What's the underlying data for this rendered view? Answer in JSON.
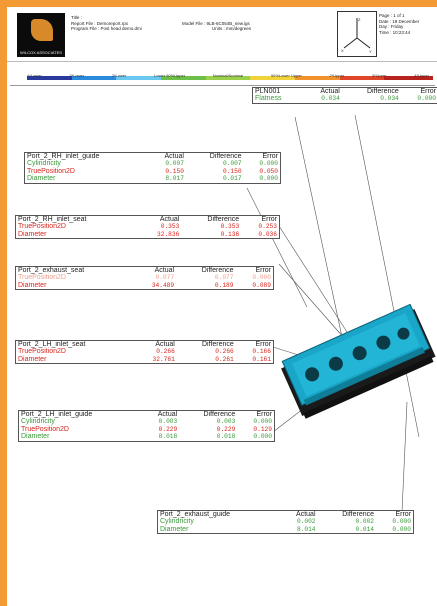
{
  "header": {
    "title_line": "Title :",
    "report_line": "Report File : Demoreport.rpx",
    "model_line": "Model File : 9LB-6C054B_new.igs",
    "program_line": "Program File : Post head demo.dmi",
    "units_line": "Units : mm/degrees",
    "page_line": "Page : 1 of 1",
    "date_line": "Date : 19 December",
    "day_line": "Day : Friday",
    "time_line": "Time : 10:23:44",
    "logo_text": "WILCOX ASSOCIATES"
  },
  "scale": {
    "labels": [
      "4*Lower",
      "3*Lower",
      "2*Lower",
      "Lower 90%Upper",
      "Nominal/Nominal",
      "90%Lower Upper",
      "2*Upper",
      "3*Upper",
      "4*Upper"
    ],
    "colors": [
      "#2a3a9c",
      "#2a8adc",
      "#6ac8f0",
      "#6cbf48",
      "#9bd04a",
      "#f2d23a",
      "#f2922a",
      "#e0452a",
      "#b8221c"
    ]
  },
  "tables": [
    {
      "title": "PLN001",
      "headers": [
        "Actual",
        "Difference",
        "Error"
      ],
      "rows": [
        {
          "label": "Flatness",
          "actual": "0.034",
          "diff": "0.034",
          "error": "0.000"
        }
      ]
    },
    {
      "title": "Port_2_RH_inlet_guide",
      "headers": [
        "Actual",
        "Difference",
        "Error"
      ],
      "rows": [
        {
          "label": "Cylindricity",
          "actual": "0.007",
          "diff": "0.007",
          "error": "0.000"
        },
        {
          "label": "TruePosition2D",
          "actual": "0.150",
          "diff": "0.150",
          "error": "0.050"
        },
        {
          "label": "Diameter",
          "actual": "8.017",
          "diff": "0.017",
          "error": "0.000"
        }
      ]
    },
    {
      "title": "Port_2_RH_inlet_seat",
      "headers": [
        "Actual",
        "Difference",
        "Error"
      ],
      "rows": [
        {
          "label": "TruePosition2D",
          "actual": "0.353",
          "diff": "0.353",
          "error": "0.253"
        },
        {
          "label": "Diameter",
          "actual": "32.836",
          "diff": "0.136",
          "error": "0.036"
        }
      ]
    },
    {
      "title": "Port_2_exhaust_seat",
      "headers": [
        "Actual",
        "Difference",
        "Error"
      ],
      "rows": [
        {
          "label": "TruePosition2D",
          "actual": "0.077",
          "diff": "0.077",
          "error": "0.000"
        },
        {
          "label": "Diameter",
          "actual": "34.489",
          "diff": "0.189",
          "error": "0.089"
        }
      ]
    },
    {
      "title": "Port_2_LH_inlet_seat",
      "headers": [
        "Actual",
        "Difference",
        "Error"
      ],
      "rows": [
        {
          "label": "TruePosition2D",
          "actual": "0.266",
          "diff": "0.266",
          "error": "0.166"
        },
        {
          "label": "Diameter",
          "actual": "32.761",
          "diff": "0.261",
          "error": "0.161"
        }
      ]
    },
    {
      "title": "Port_2_LH_inlet_guide",
      "headers": [
        "Actual",
        "Difference",
        "Error"
      ],
      "rows": [
        {
          "label": "Cylindricity",
          "actual": "0.003",
          "diff": "0.003",
          "error": "0.000"
        },
        {
          "label": "TruePosition2D",
          "actual": "0.229",
          "diff": "0.229",
          "error": "0.129"
        },
        {
          "label": "Diameter",
          "actual": "8.018",
          "diff": "0.018",
          "error": "0.000"
        }
      ]
    },
    {
      "title": "Port_2_exhaust_guide",
      "headers": [
        "Actual",
        "Difference",
        "Error"
      ],
      "rows": [
        {
          "label": "Cylindricity",
          "actual": "0.002",
          "diff": "0.002",
          "error": "0.000"
        },
        {
          "label": "Diameter",
          "actual": "8.014",
          "diff": "0.014",
          "error": "0.000"
        }
      ]
    }
  ],
  "colors": {
    "frame": "#f39a35",
    "in_tolerance": "#3a9a3a",
    "out_of_tolerance": "#d9251d",
    "part_blue": "#1aa6c8"
  }
}
